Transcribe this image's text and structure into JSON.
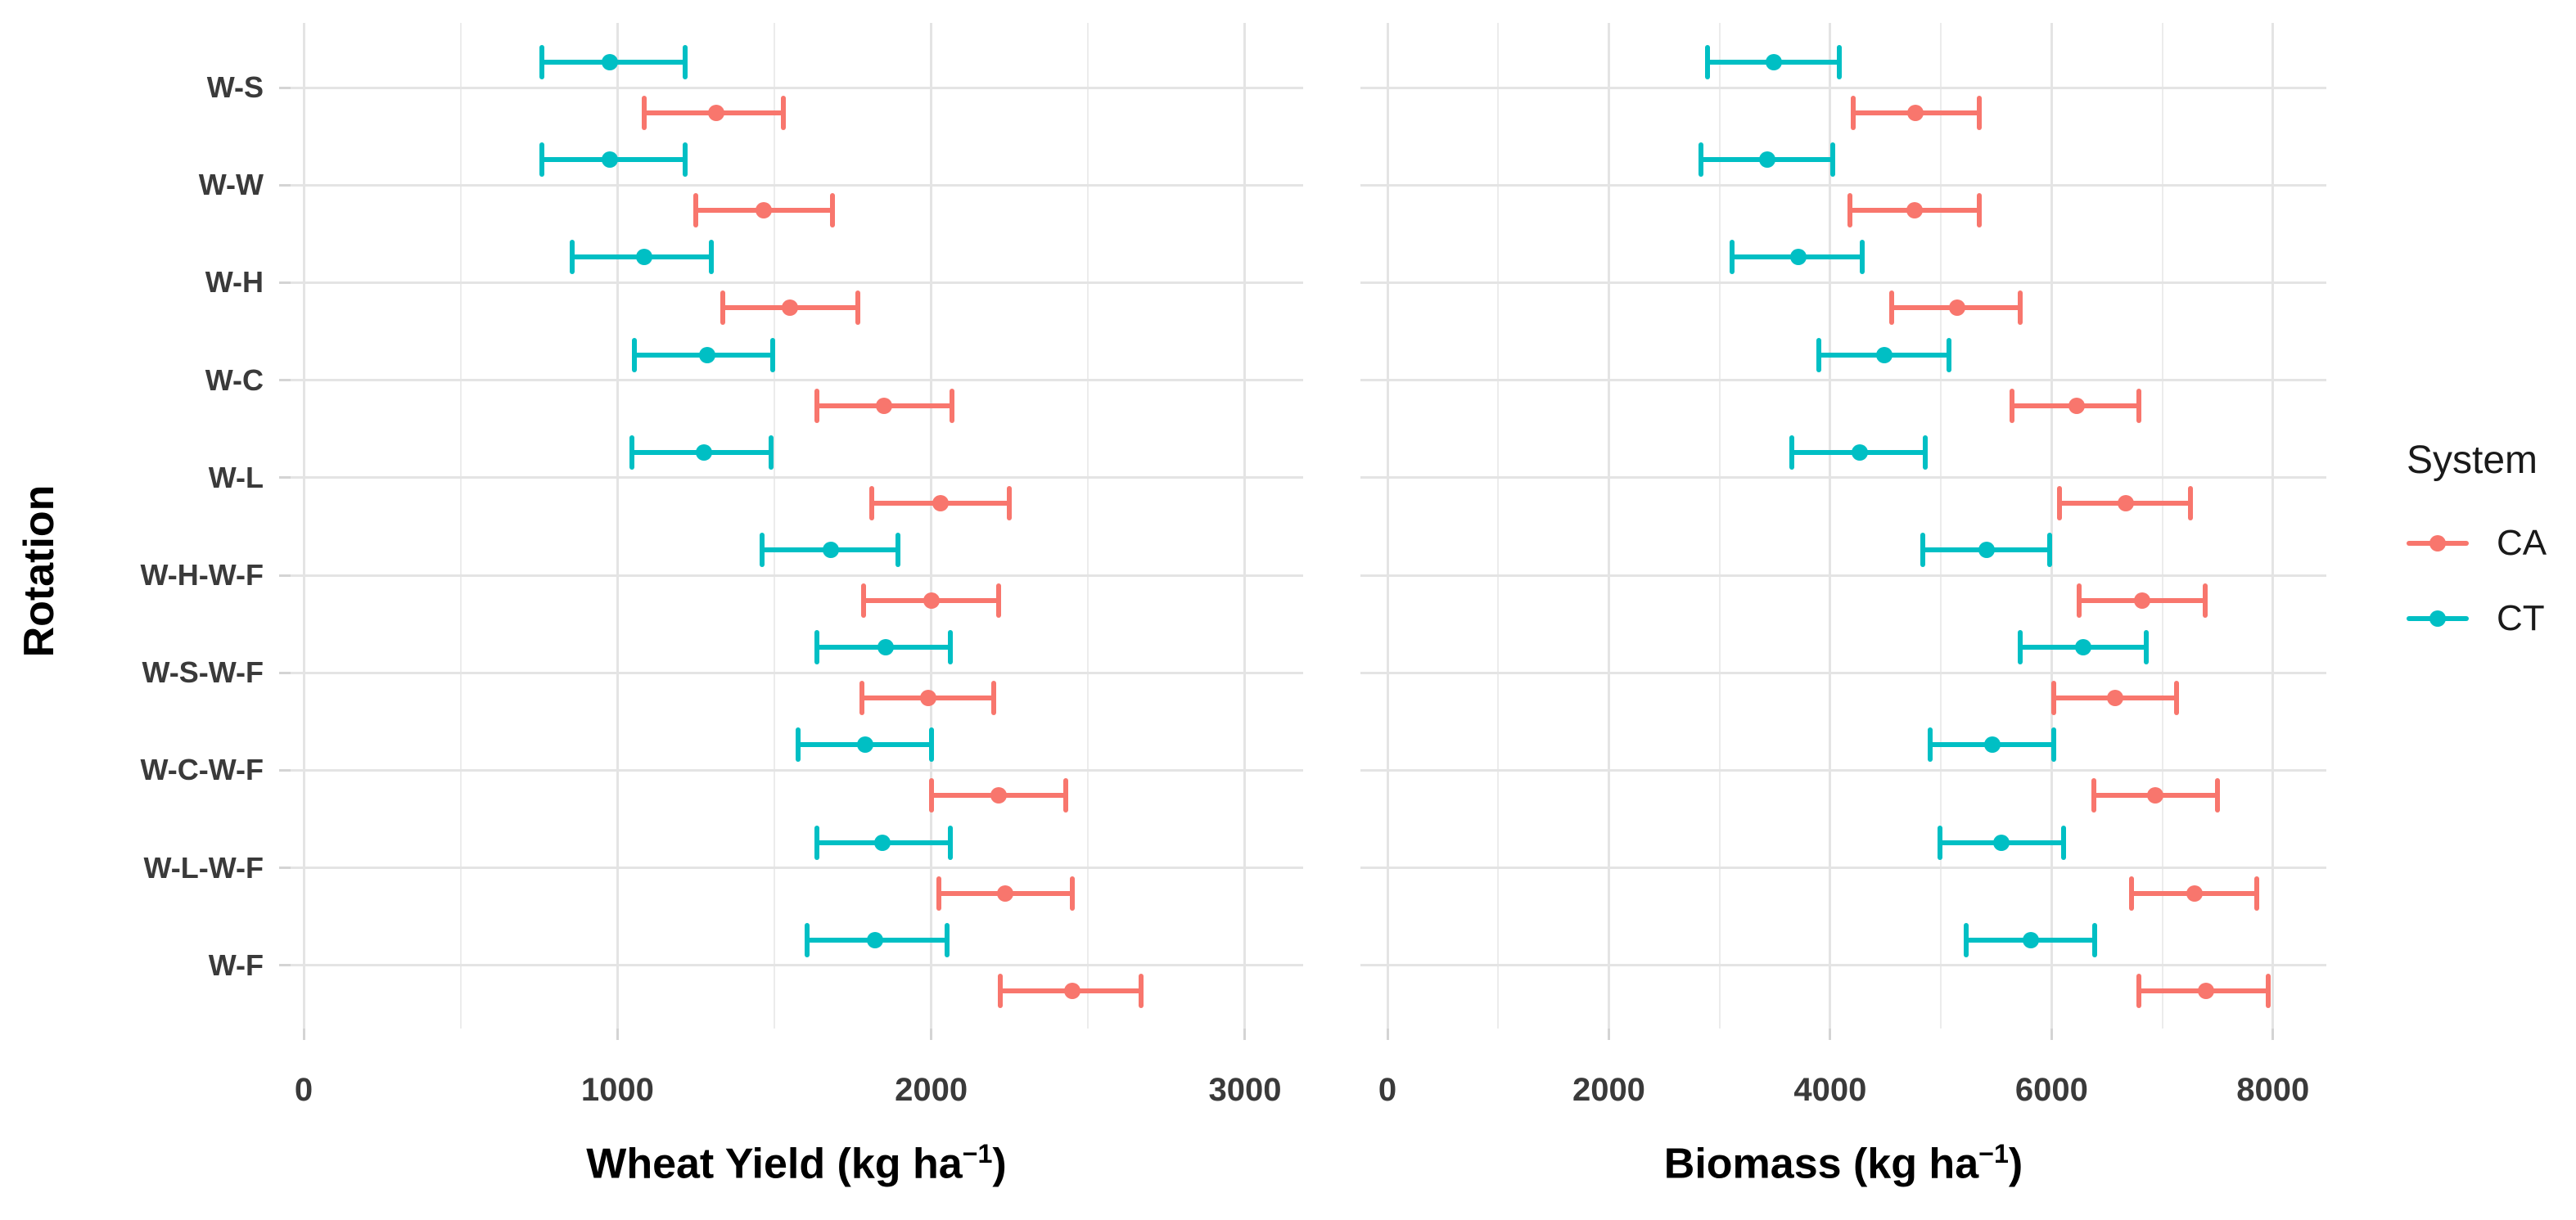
{
  "figure": {
    "y_axis_title": "Rotation",
    "categories": [
      "W-S",
      "W-W",
      "W-H",
      "W-C",
      "W-L",
      "W-H-W-F",
      "W-S-W-F",
      "W-C-W-F",
      "W-L-W-F",
      "W-F"
    ],
    "legend": {
      "title": "System",
      "entries": [
        {
          "label": "CA",
          "color": "#F8766D"
        },
        {
          "label": "CT",
          "color": "#00BFC4"
        }
      ]
    },
    "colors": {
      "ca": "#F8766D",
      "ct": "#00BFC4",
      "gridline": "#e4e4e4",
      "tick_text": "#3a3a3a"
    }
  },
  "chart_data": [
    {
      "type": "pointrange",
      "panel": "left",
      "xlabel_prefix": "Wheat Yield (kg ha",
      "xlabel_sup": "−1",
      "xlabel_suffix": ")",
      "xlim": [
        0,
        3000
      ],
      "x_ticks": [
        0,
        1000,
        2000,
        3000
      ],
      "x_minor_ticks": [
        500,
        1500,
        2500
      ],
      "grid": true,
      "legend_position": "right",
      "categories": [
        "W-S",
        "W-W",
        "W-H",
        "W-C",
        "W-L",
        "W-H-W-F",
        "W-S-W-F",
        "W-C-W-F",
        "W-L-W-F",
        "W-F"
      ],
      "series": [
        {
          "name": "CA",
          "color": "#F8766D",
          "means": [
            1315,
            1465,
            1550,
            1850,
            2030,
            2000,
            1990,
            2215,
            2235,
            2450
          ],
          "lows": [
            1085,
            1250,
            1335,
            1635,
            1810,
            1785,
            1780,
            2000,
            2025,
            2220
          ],
          "highs": [
            1530,
            1685,
            1765,
            2065,
            2250,
            2215,
            2200,
            2430,
            2450,
            2670
          ]
        },
        {
          "name": "CT",
          "color": "#00BFC4",
          "means": [
            975,
            975,
            1085,
            1285,
            1275,
            1680,
            1855,
            1790,
            1845,
            1820
          ],
          "lows": [
            760,
            760,
            855,
            1055,
            1045,
            1460,
            1635,
            1575,
            1635,
            1605
          ],
          "highs": [
            1215,
            1215,
            1300,
            1495,
            1490,
            1895,
            2060,
            2000,
            2060,
            2050
          ]
        }
      ]
    },
    {
      "type": "pointrange",
      "panel": "right",
      "xlabel_prefix": "Biomass (kg ha",
      "xlabel_sup": "−1",
      "xlabel_suffix": ")",
      "xlim": [
        0,
        8000
      ],
      "x_ticks": [
        0,
        2000,
        4000,
        6000,
        8000
      ],
      "x_minor_ticks": [
        1000,
        3000,
        5000,
        7000
      ],
      "grid": true,
      "legend_position": "right",
      "categories": [
        "W-S",
        "W-W",
        "W-H",
        "W-C",
        "W-L",
        "W-H-W-F",
        "W-S-W-F",
        "W-C-W-F",
        "W-L-W-F",
        "W-F"
      ],
      "series": [
        {
          "name": "CA",
          "color": "#F8766D",
          "means": [
            4770,
            4760,
            5145,
            6230,
            6670,
            6815,
            6575,
            6935,
            7290,
            7395
          ],
          "lows": [
            4205,
            4180,
            4555,
            5640,
            6075,
            6250,
            6020,
            6380,
            6725,
            6790
          ],
          "highs": [
            5350,
            5350,
            5720,
            6790,
            7255,
            7385,
            7130,
            7500,
            7855,
            7960
          ]
        },
        {
          "name": "CT",
          "color": "#00BFC4",
          "means": [
            3490,
            3430,
            3710,
            4490,
            4265,
            5410,
            6285,
            5465,
            5545,
            5810
          ],
          "lows": [
            2890,
            2830,
            3110,
            3895,
            3655,
            4840,
            5720,
            4900,
            4990,
            5225
          ],
          "highs": [
            4080,
            4025,
            4290,
            5075,
            4855,
            5985,
            6855,
            6020,
            6110,
            6390
          ]
        }
      ]
    }
  ]
}
